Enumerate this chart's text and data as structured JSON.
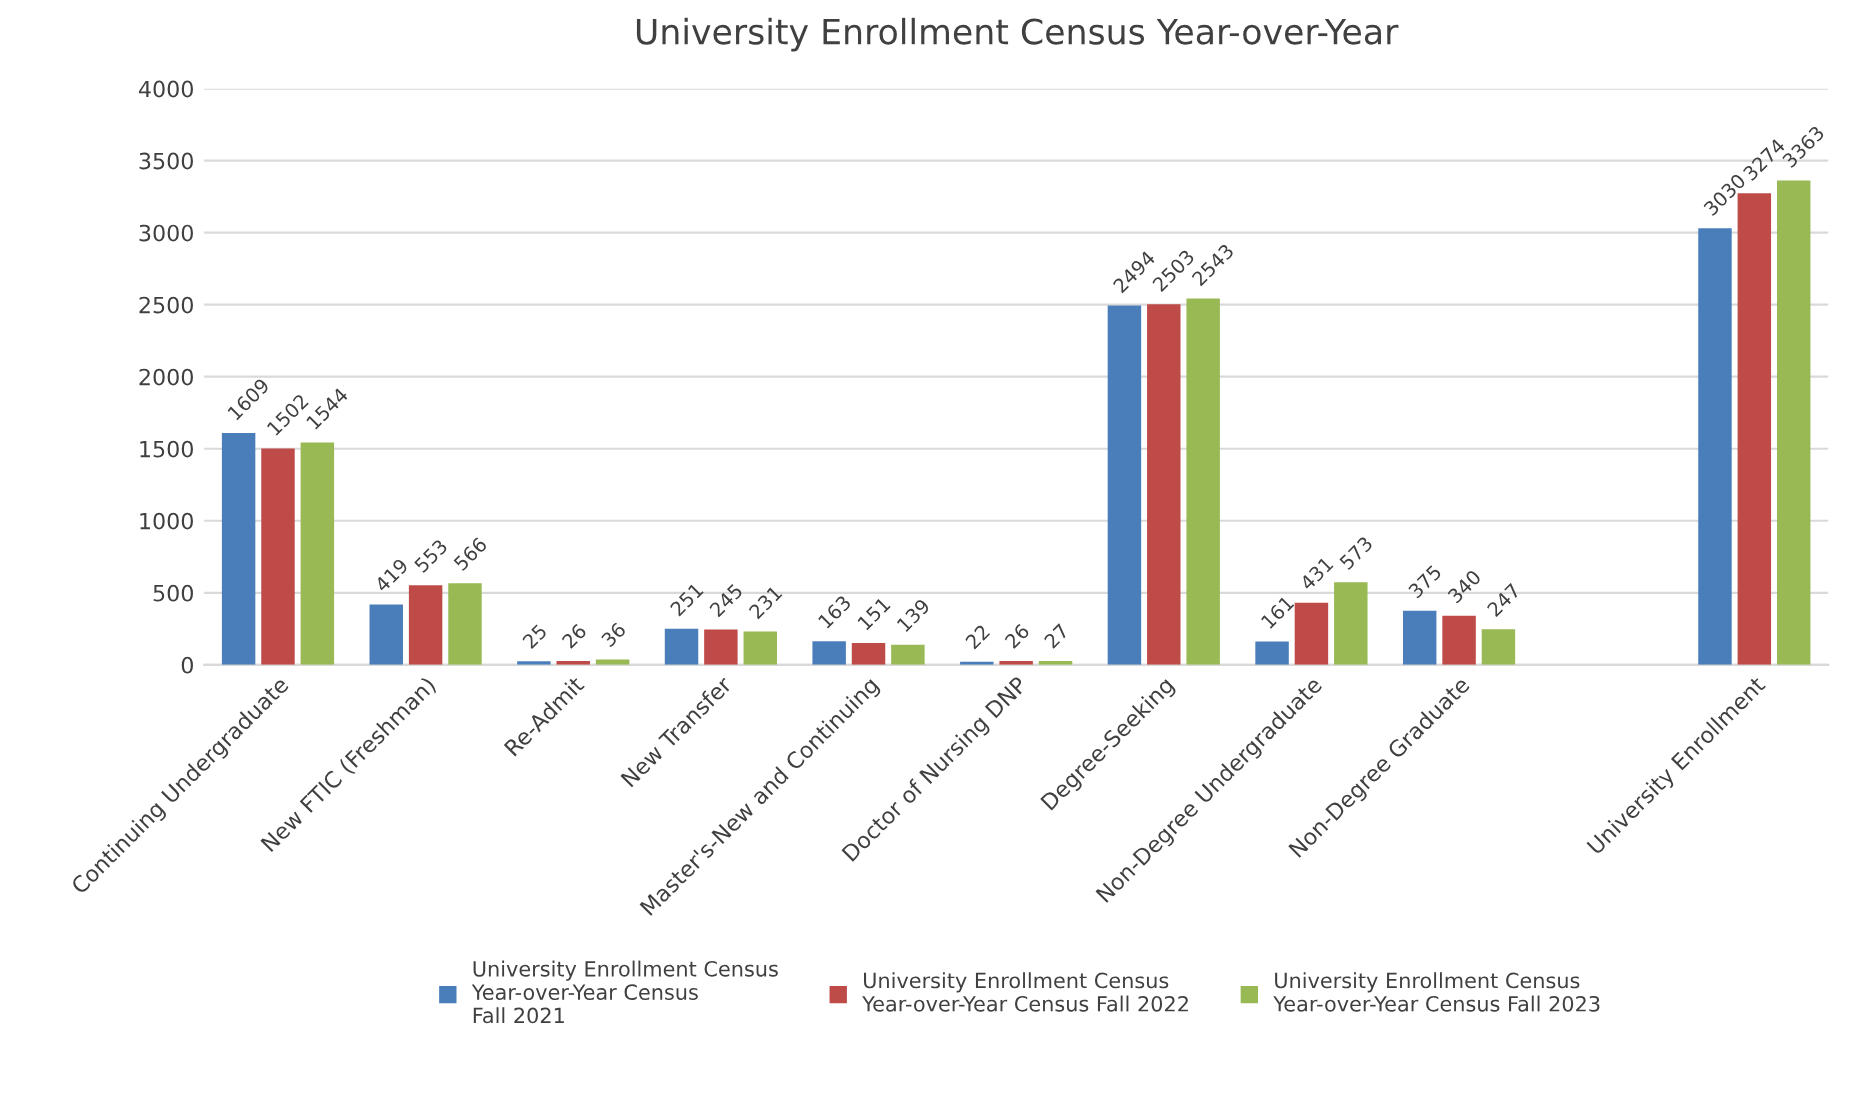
{
  "chart_data": {
    "type": "bar",
    "title": "University Enrollment Census Year-over-Year",
    "categories": [
      "Continuing Undergraduate",
      "New FTIC (Freshman)",
      "Re-Admit",
      "New Transfer",
      "Master's-New and Continuing",
      "Doctor of Nursing DNP",
      "Degree-Seeking",
      "Non-Degree Undergraduate",
      "Non-Degree Graduate",
      null,
      "University Enrollment"
    ],
    "series": [
      {
        "name": "University Enrollment Census\nYear-over-Year Census\nFall 2021",
        "color": "#4a7ebb",
        "values": [
          1609,
          419,
          25,
          251,
          163,
          22,
          2494,
          161,
          375,
          null,
          3030
        ]
      },
      {
        "name": "University Enrollment Census\nYear-over-Year Census Fall 2022",
        "color": "#be4b48",
        "values": [
          1502,
          553,
          26,
          245,
          151,
          26,
          2503,
          431,
          340,
          null,
          3274
        ]
      },
      {
        "name": "University Enrollment Census\nYear-over-Year Census Fall 2023",
        "color": "#98b954",
        "values": [
          1544,
          566,
          36,
          231,
          139,
          27,
          2543,
          573,
          247,
          null,
          3363
        ]
      }
    ],
    "ylim": [
      0,
      4000
    ],
    "yticks": [
      0,
      500,
      1000,
      1500,
      2000,
      2500,
      3000,
      3500,
      4000
    ],
    "grid": "y",
    "legend": "bottom",
    "data_labels": true
  }
}
